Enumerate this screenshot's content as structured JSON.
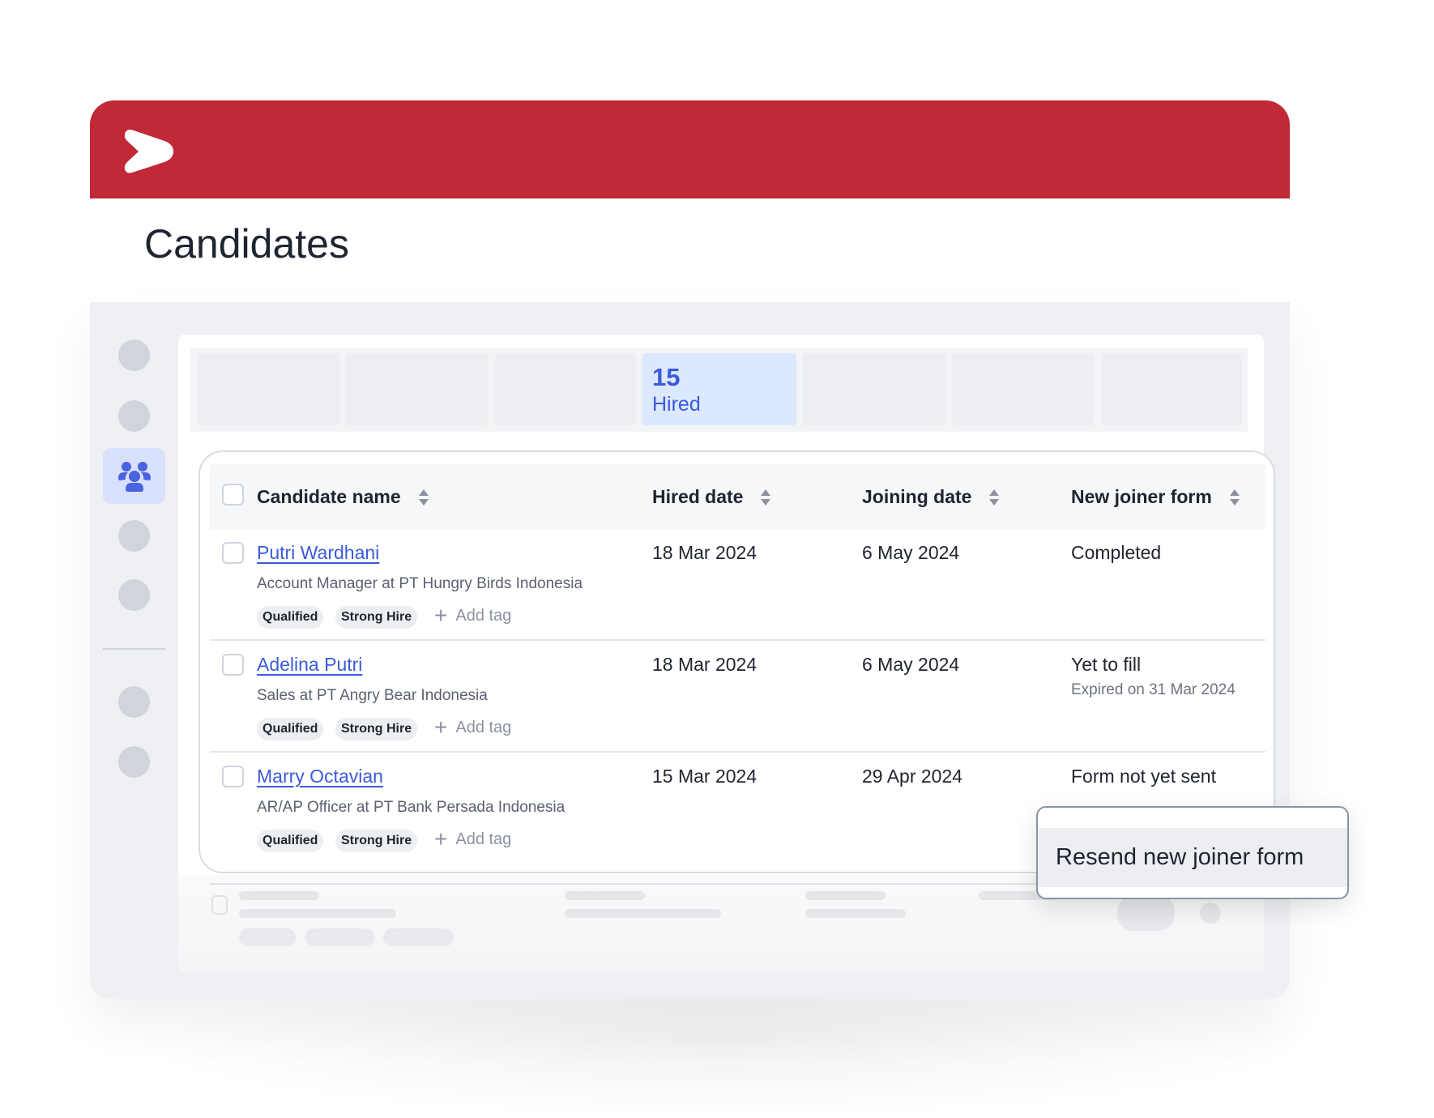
{
  "app": {
    "brand_color": "#c02935",
    "accent": "#3b5bdb",
    "logo_icon": "chevron-arrow-logo"
  },
  "page": {
    "title": "Candidates"
  },
  "sidebar": {
    "active_icon": "people-group-icon"
  },
  "stats": {
    "active": {
      "count": "15",
      "label": "Hired"
    }
  },
  "table": {
    "columns": [
      "Candidate name",
      "Hired date",
      "Joining date",
      "New joiner form"
    ],
    "rows": [
      {
        "name": "Putri Wardhani",
        "subtitle": "Account Manager at PT Hungry Birds Indonesia",
        "tags": [
          "Qualified",
          "Strong Hire"
        ],
        "add_tag": "Add tag",
        "hired": "18 Mar 2024",
        "joining": "6 May 2024",
        "form": "Completed",
        "form_note": ""
      },
      {
        "name": "Adelina Putri",
        "subtitle": "Sales at PT Angry Bear Indonesia",
        "tags": [
          "Qualified",
          "Strong Hire"
        ],
        "add_tag": "Add tag",
        "hired": "18 Mar 2024",
        "joining": "6 May 2024",
        "form": "Yet to fill",
        "form_note": "Expired on 31 Mar 2024"
      },
      {
        "name": "Marry Octavian",
        "subtitle": "AR/AP Officer at PT Bank Persada Indonesia",
        "tags": [
          "Qualified",
          "Strong Hire"
        ],
        "add_tag": "Add tag",
        "hired": "15 Mar 2024",
        "joining": "29 Apr 2024",
        "form": "Form not yet sent",
        "form_note": ""
      }
    ]
  },
  "popup": {
    "item": "Resend new joiner form"
  }
}
